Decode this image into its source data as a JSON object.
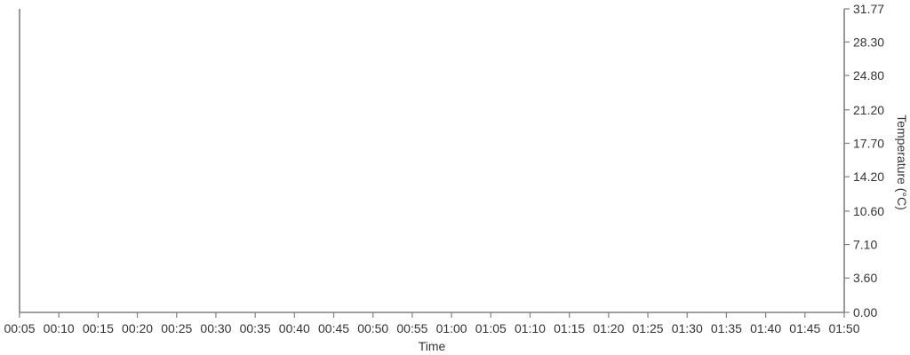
{
  "chart_data": {
    "type": "line",
    "title": "",
    "xlabel": "Time",
    "ylabel": "Temperature (°C)",
    "x_ticks": [
      "00:05",
      "00:10",
      "00:15",
      "00:20",
      "00:25",
      "00:30",
      "00:35",
      "00:40",
      "00:45",
      "00:50",
      "00:55",
      "01:00",
      "01:05",
      "01:10",
      "01:15",
      "01:20",
      "01:25",
      "01:30",
      "01:35",
      "01:40",
      "01:45",
      "01:50"
    ],
    "y_ticks": [
      "0.00",
      "3.60",
      "7.10",
      "10.60",
      "14.20",
      "17.70",
      "21.20",
      "24.80",
      "28.30",
      "31.77"
    ],
    "ylim": [
      0,
      31.77
    ],
    "y_axis_position": "right",
    "grid": false,
    "series": []
  }
}
